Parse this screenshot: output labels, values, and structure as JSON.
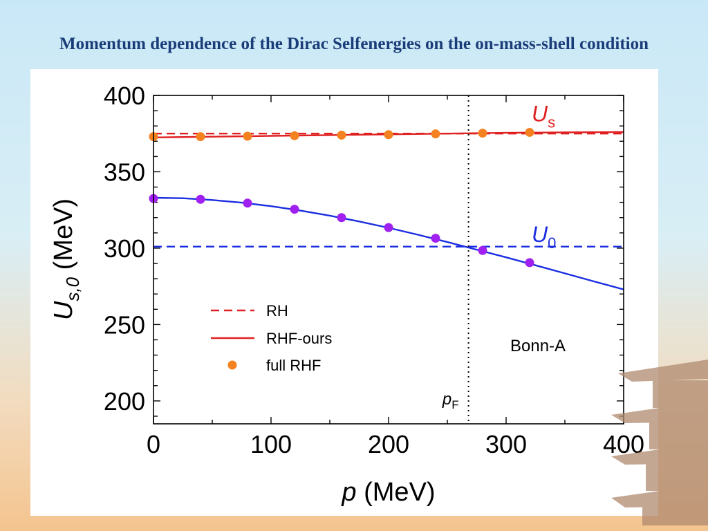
{
  "slide": {
    "title": "Momentum dependence of the Dirac Selfenergies on the on-mass-shell condition"
  },
  "chart_data": {
    "type": "line",
    "xlabel": {
      "italic": "p",
      "rest": " (MeV)"
    },
    "ylabel": {
      "italic": "U",
      "sub": "s,0",
      "rest": "  (MeV)"
    },
    "xlim": [
      0,
      400
    ],
    "ylim": [
      185,
      400
    ],
    "xticks": [
      0,
      100,
      200,
      300,
      400
    ],
    "yticks": [
      200,
      250,
      300,
      350,
      400
    ],
    "xtick_labels": [
      "0",
      "100",
      "200",
      "300",
      "400"
    ],
    "ytick_labels": [
      "200",
      "250",
      "300",
      "350",
      "400"
    ],
    "colors": {
      "Us": "#e02020",
      "U0": "#1a2ee0",
      "full_rhf": "#f58220",
      "full_rhf_u0": "#a020f0"
    },
    "series": [
      {
        "key": "RH_Us",
        "style": "dashed",
        "color": "#e02020",
        "x": [
          0,
          400
        ],
        "y": [
          375,
          375
        ]
      },
      {
        "key": "RHF_Us",
        "style": "solid",
        "color": "#e02020",
        "x": [
          0,
          50,
          100,
          150,
          200,
          250,
          300,
          350,
          400
        ],
        "y": [
          372.5,
          373,
          373.5,
          374,
          374.5,
          375,
          375.5,
          375.8,
          376
        ]
      },
      {
        "key": "full_Us",
        "style": "points",
        "color": "#f58220",
        "x": [
          0,
          40,
          80,
          120,
          160,
          200,
          240,
          280,
          320
        ],
        "y": [
          373,
          373,
          373.3,
          373.6,
          374,
          374.3,
          374.8,
          375.3,
          375.8
        ]
      },
      {
        "key": "RH_U0",
        "style": "dashed",
        "color": "#1a2ee0",
        "x": [
          0,
          400
        ],
        "y": [
          301,
          301
        ]
      },
      {
        "key": "RHF_U0",
        "style": "solid",
        "color": "#1a2ee0",
        "x": [
          0,
          25,
          50,
          75,
          100,
          125,
          150,
          175,
          200,
          225,
          250,
          275,
          300,
          325,
          350,
          375,
          400
        ],
        "y": [
          333,
          332.7,
          331.5,
          329.8,
          327.5,
          324.6,
          321.3,
          317.5,
          313.3,
          308.8,
          304,
          299,
          294,
          288.8,
          283.5,
          278.2,
          273
        ]
      },
      {
        "key": "full_U0",
        "style": "points",
        "color": "#a020f0",
        "x": [
          0,
          40,
          80,
          120,
          160,
          200,
          240,
          280,
          320
        ],
        "y": [
          332.5,
          332,
          329.5,
          325.5,
          320,
          313.5,
          306.5,
          298.5,
          290.5
        ]
      }
    ],
    "vline": {
      "x": 268,
      "label_italic": "p",
      "label_sub": "F"
    },
    "curve_labels": [
      {
        "key": "Us",
        "text": "U",
        "sub": "s",
        "x": 320,
        "y": 383,
        "color": "#e02020"
      },
      {
        "key": "U0",
        "text": "U",
        "sub": "0",
        "x": 320,
        "y": 304,
        "color": "#1a2ee0"
      }
    ],
    "legend": {
      "placement": "lower-left",
      "entries": [
        {
          "label": "RH",
          "style": "dashed",
          "color": "#e02020"
        },
        {
          "label": "RHF-ours",
          "style": "solid",
          "color": "#e02020"
        },
        {
          "label": "full RHF",
          "style": "points",
          "color": "#f58220"
        }
      ]
    },
    "annotation": "Bonn-A"
  }
}
